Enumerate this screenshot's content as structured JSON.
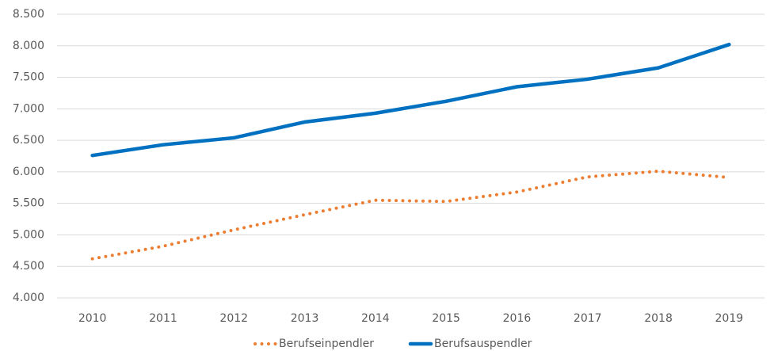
{
  "chart_data": {
    "type": "line",
    "categories": [
      "2010",
      "2011",
      "2012",
      "2013",
      "2014",
      "2015",
      "2016",
      "2017",
      "2018",
      "2019"
    ],
    "series": [
      {
        "name": "Berufseinpendler",
        "color": "#ed7d31",
        "style": "dotted",
        "values": [
          4620,
          4820,
          5080,
          5320,
          5550,
          5530,
          5680,
          5920,
          6010,
          5910
        ]
      },
      {
        "name": "Berufsauspendler",
        "color": "#0070c0",
        "style": "solid",
        "values": [
          6260,
          6430,
          6540,
          6790,
          6930,
          7120,
          7350,
          7470,
          7650,
          8020
        ]
      }
    ],
    "ylim": [
      4000,
      8500
    ],
    "yticks": [
      {
        "value": 4000,
        "label": "4.000"
      },
      {
        "value": 4500,
        "label": "4.500"
      },
      {
        "value": 5000,
        "label": "5.000"
      },
      {
        "value": 5500,
        "label": "5.500"
      },
      {
        "value": 6000,
        "label": "6.000"
      },
      {
        "value": 6500,
        "label": "6.500"
      },
      {
        "value": 7000,
        "label": "7.000"
      },
      {
        "value": 7500,
        "label": "7.500"
      },
      {
        "value": 8000,
        "label": "8.000"
      },
      {
        "value": 8500,
        "label": "8.500"
      }
    ],
    "grid": true,
    "legend": "bottom"
  }
}
